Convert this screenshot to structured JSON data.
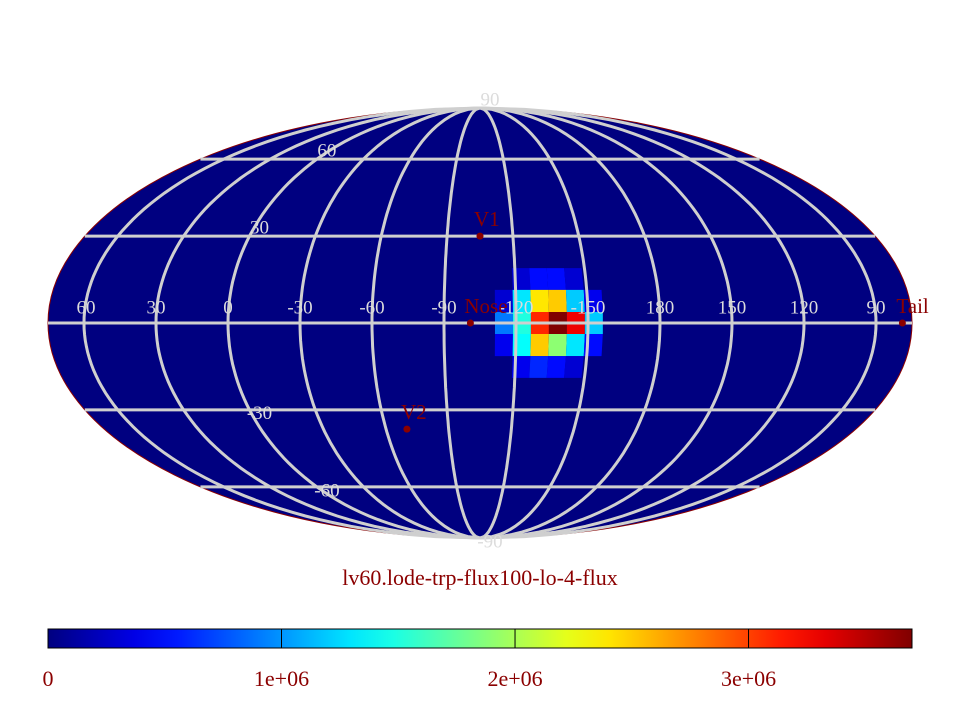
{
  "chart_data": {
    "type": "mollweide-map",
    "title": "lv60.lode-trp-flux100-lo-4-flux",
    "colormap": "jet",
    "center_lon": -105,
    "lon_ticks": [
      60,
      30,
      0,
      -30,
      -60,
      -90,
      -120,
      -150,
      180,
      150,
      120,
      90
    ],
    "lat_ticks": [
      90,
      60,
      30,
      -30,
      -60,
      -90
    ],
    "grid": true,
    "cells": {
      "lon": [
        -122.5,
        -130,
        -137.5,
        -145,
        -115,
        -122.5,
        -130,
        -137.5,
        -145,
        -152.5,
        -115,
        -122.5,
        -130,
        -137.5,
        -145,
        -152.5,
        -115,
        -122.5,
        -130,
        -137.5,
        -145,
        -152.5,
        -122.5,
        -130,
        -137.5,
        -145
      ],
      "lat": [
        15,
        15,
        15,
        15,
        7.5,
        7.5,
        7.5,
        7.5,
        7.5,
        7.5,
        0,
        0,
        0,
        0,
        0,
        0,
        -7.5,
        -7.5,
        -7.5,
        -7.5,
        -7.5,
        -7.5,
        -15,
        -15,
        -15,
        -15
      ],
      "values": [
        300000,
        500000,
        500000,
        300000,
        300000,
        1300000,
        2400000,
        2500000,
        1200000,
        400000,
        900000,
        1500000,
        3100000,
        3700000,
        3300000,
        1200000,
        400000,
        1400000,
        2500000,
        1900000,
        1300000,
        500000,
        400000,
        600000,
        500000,
        300000
      ]
    },
    "points": [
      {
        "name": "Nose",
        "lon": -101,
        "lat": 0
      },
      {
        "name": "V1",
        "lon": -105,
        "lat": 30
      },
      {
        "name": "V2",
        "lon": -70,
        "lat": -37
      },
      {
        "name": "Tail",
        "lon": 79,
        "lat": 0
      }
    ],
    "clim": [
      0,
      3700000
    ],
    "cticks": [
      0,
      {
        "value": 1000000,
        "label": "1e+06"
      },
      {
        "value": 2000000,
        "label": "2e+06"
      },
      {
        "value": 3000000,
        "label": "3e+06"
      }
    ]
  }
}
